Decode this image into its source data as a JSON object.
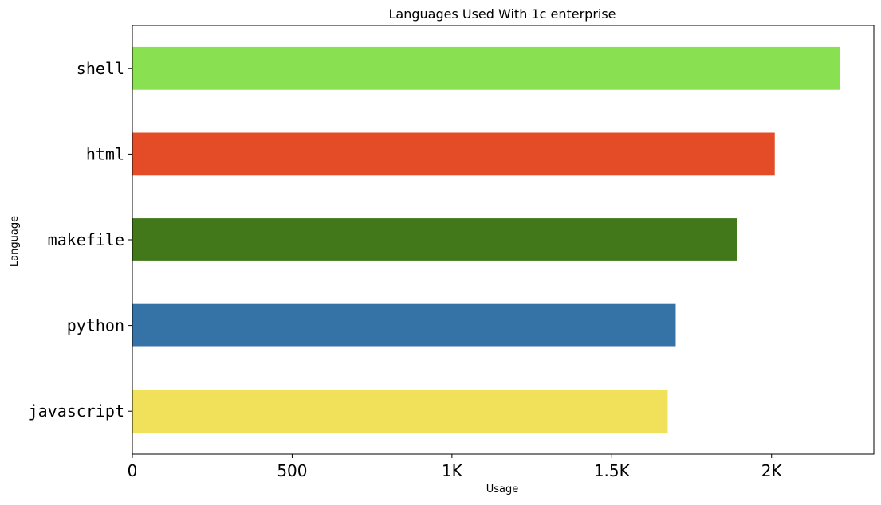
{
  "chart_data": {
    "type": "bar",
    "orientation": "horizontal",
    "title": "Languages Used With 1c enterprise",
    "xlabel": "Usage",
    "ylabel": "Language",
    "categories": [
      "shell",
      "html",
      "makefile",
      "python",
      "javascript"
    ],
    "values": [
      2215,
      2010,
      1893,
      1700,
      1675
    ],
    "colors": [
      "#89e051",
      "#e34c26",
      "#427819",
      "#3572A5",
      "#f1e05a"
    ],
    "xlim": [
      0,
      2320
    ],
    "x_ticks": [
      0,
      500,
      1000,
      1500,
      2000
    ],
    "x_tick_labels": [
      "0",
      "500",
      "1K",
      "1.5K",
      "2K"
    ],
    "grid": false
  }
}
